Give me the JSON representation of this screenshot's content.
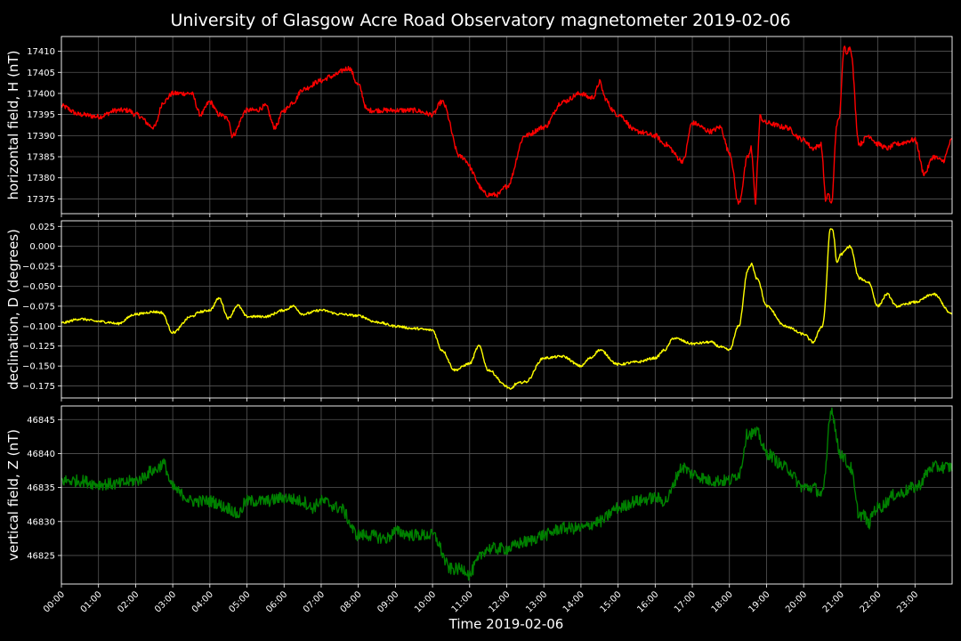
{
  "chart_data": {
    "type": "line",
    "title": "University of Glasgow Acre Road Observatory magnetometer 2019-02-06",
    "xlabel": "Time 2019-02-06",
    "x_ticks": [
      "00:00",
      "01:00",
      "02:00",
      "03:00",
      "04:00",
      "05:00",
      "06:00",
      "07:00",
      "08:00",
      "09:00",
      "10:00",
      "11:00",
      "12:00",
      "13:00",
      "14:00",
      "15:00",
      "16:00",
      "17:00",
      "18:00",
      "19:00",
      "20:00",
      "21:00",
      "22:00",
      "23:00"
    ],
    "xlim": [
      0,
      24
    ],
    "grid": true,
    "panels": [
      {
        "name": "horizontal",
        "ylabel": "horizontal field, H (nT)",
        "color": "#ff0000",
        "ylim": [
          17371.5,
          17413.5
        ],
        "yticks": [
          17375,
          17380,
          17385,
          17390,
          17395,
          17400,
          17405,
          17410
        ],
        "ytick_labels": [
          "17375",
          "17380",
          "17385",
          "17390",
          "17395",
          "17400",
          "17405",
          "17410"
        ],
        "noise": 0.6,
        "x": [
          0,
          0.5,
          1,
          1.5,
          1.8,
          2,
          2.5,
          2.75,
          3,
          3.5,
          3.75,
          4,
          4.25,
          4.5,
          4.6,
          5,
          5.25,
          5.5,
          5.75,
          6,
          6.25,
          6.5,
          7,
          7.25,
          7.75,
          8,
          8.25,
          9,
          9.5,
          10,
          10.25,
          10.75,
          11.5,
          11.75,
          12,
          12.5,
          13,
          13.5,
          14,
          14.25,
          14.5,
          15,
          15.5,
          16,
          16.25,
          16.75,
          17,
          17.5,
          17.75,
          18,
          18.25,
          18.5,
          18.75,
          19,
          19.5,
          20,
          20.25,
          20.5,
          20.75,
          20.9,
          21.25,
          21.5,
          21.75,
          22,
          22.25,
          22.5,
          23,
          23.25,
          23.5,
          23.75,
          24
        ],
        "y": [
          17397,
          17395,
          17394.5,
          17396,
          17396,
          17395,
          17392,
          17398,
          17400,
          17400,
          17395,
          17398,
          17395,
          17394,
          17390,
          17396,
          17396,
          17397,
          17392,
          17396,
          17398,
          17401,
          17403,
          17404,
          17406,
          17402,
          17396,
          17396,
          17396,
          17395,
          17398,
          17385,
          17376,
          17376,
          17378,
          17390,
          17392,
          17398,
          17400,
          17399,
          17400,
          17395,
          17391,
          17390,
          17388,
          17384,
          17393,
          17391,
          17392,
          17386,
          17374,
          17385,
          17395,
          17393,
          17392,
          17389,
          17387,
          17388,
          17374,
          17393,
          17411,
          17388,
          17390,
          17388,
          17387,
          17388,
          17389,
          17381,
          17385,
          17384,
          17389
        ],
        "spikes": [
          [
            14.5,
            17403
          ],
          [
            20.6,
            17374
          ],
          [
            21.1,
            17411.5
          ],
          [
            18.7,
            17373
          ]
        ]
      },
      {
        "name": "declination",
        "ylabel": "declination, D (degrees)",
        "color": "#ffff00",
        "ylim": [
          -0.19,
          0.032
        ],
        "yticks": [
          -0.175,
          -0.15,
          -0.125,
          -0.1,
          -0.075,
          -0.05,
          -0.025,
          0.0,
          0.025
        ],
        "ytick_labels": [
          "−0.175",
          "−0.150",
          "−0.125",
          "−0.100",
          "−0.075",
          "−0.050",
          "−0.025",
          "0.000",
          "0.025"
        ],
        "noise": 0.0015,
        "x": [
          0,
          0.5,
          1,
          1.25,
          1.5,
          2,
          2.5,
          2.7,
          3,
          3.5,
          3.75,
          4,
          4.25,
          4.5,
          4.75,
          5,
          5.5,
          6,
          6.25,
          6.5,
          7,
          7.5,
          8,
          8.5,
          9,
          9.5,
          10,
          10.25,
          10.6,
          11,
          11.25,
          11.5,
          12,
          12.5,
          13,
          13.5,
          14,
          14.25,
          14.5,
          15,
          15.5,
          16,
          16.25,
          16.5,
          17,
          17.5,
          17.75,
          18,
          18.25,
          18.5,
          18.75,
          19,
          19.5,
          20,
          20.25,
          20.5,
          20.75,
          20.9,
          21,
          21.25,
          21.5,
          21.75,
          22,
          22.25,
          22.5,
          23,
          23.5,
          24
        ],
        "y": [
          -0.096,
          -0.091,
          -0.094,
          -0.095,
          -0.097,
          -0.085,
          -0.082,
          -0.083,
          -0.108,
          -0.088,
          -0.082,
          -0.08,
          -0.065,
          -0.09,
          -0.074,
          -0.088,
          -0.088,
          -0.08,
          -0.075,
          -0.085,
          -0.08,
          -0.085,
          -0.087,
          -0.095,
          -0.1,
          -0.103,
          -0.105,
          -0.13,
          -0.155,
          -0.147,
          -0.125,
          -0.155,
          -0.175,
          -0.17,
          -0.14,
          -0.138,
          -0.15,
          -0.14,
          -0.13,
          -0.148,
          -0.145,
          -0.14,
          -0.13,
          -0.115,
          -0.122,
          -0.12,
          -0.126,
          -0.13,
          -0.1,
          -0.03,
          -0.04,
          -0.075,
          -0.1,
          -0.11,
          -0.12,
          -0.1,
          0.022,
          -0.02,
          -0.01,
          0.0,
          -0.04,
          -0.045,
          -0.075,
          -0.06,
          -0.075,
          -0.07,
          -0.06,
          -0.085
        ],
        "spikes": [
          [
            20.75,
            0.022
          ],
          [
            18.6,
            -0.022
          ],
          [
            12.1,
            -0.18
          ]
        ]
      },
      {
        "name": "vertical",
        "ylabel": "vertical field, Z (nT)",
        "color": "#008000",
        "ylim": [
          46820.8,
          46847
        ],
        "yticks": [
          46825,
          46830,
          46835,
          46840,
          46845
        ],
        "ytick_labels": [
          "46825",
          "46830",
          "46835",
          "46840",
          "46845"
        ],
        "noise": 0.9,
        "x": [
          0,
          0.5,
          1,
          1.5,
          2,
          2.5,
          2.75,
          3,
          3.25,
          3.5,
          4,
          4.5,
          4.75,
          5,
          5.5,
          6,
          6.5,
          6.75,
          7,
          7.5,
          8,
          8.25,
          8.75,
          9,
          9.5,
          10,
          10.5,
          11,
          11.5,
          12,
          12.5,
          13,
          13.5,
          14,
          14.5,
          15,
          15.5,
          16,
          16.25,
          16.75,
          17,
          17.5,
          18,
          18.25,
          18.5,
          18.75,
          19,
          19.5,
          20,
          20.25,
          20.5,
          20.75,
          21,
          21.25,
          21.5,
          21.75,
          22,
          22.5,
          23,
          23.5,
          24
        ],
        "y": [
          46836,
          46836,
          46835.5,
          46835.5,
          46836,
          46837.5,
          46838.5,
          46835,
          46834,
          46833,
          46833,
          46832,
          46831,
          46833,
          46833,
          46833.5,
          46833,
          46832,
          46833,
          46832,
          46828,
          46828,
          46827.5,
          46828.5,
          46828,
          46828,
          46823,
          46823,
          46826,
          46826,
          46827,
          46828,
          46829,
          46829,
          46830,
          46832,
          46833,
          46833.5,
          46833,
          46838,
          46837,
          46836,
          46836,
          46837,
          46843,
          46843,
          46840,
          46838,
          46835,
          46835,
          46834,
          46845,
          46840,
          46838,
          46831,
          46831,
          46832,
          46834,
          46835,
          46838,
          46838
        ],
        "spikes": [
          [
            20.75,
            46846.5
          ],
          [
            11,
            46822
          ],
          [
            21.75,
            46829.5
          ]
        ]
      }
    ]
  }
}
